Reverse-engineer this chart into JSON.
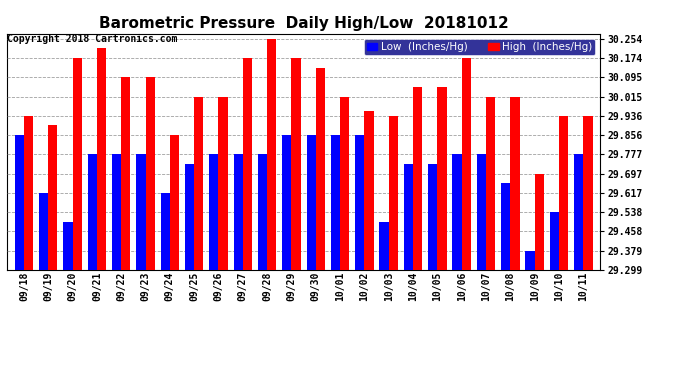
{
  "title": "Barometric Pressure  Daily High/Low  20181012",
  "copyright": "Copyright 2018 Cartronics.com",
  "legend_low": "Low  (Inches/Hg)",
  "legend_high": "High  (Inches/Hg)",
  "dates": [
    "09/18",
    "09/19",
    "09/20",
    "09/21",
    "09/22",
    "09/23",
    "09/24",
    "09/25",
    "09/26",
    "09/27",
    "09/28",
    "09/29",
    "09/30",
    "10/01",
    "10/02",
    "10/03",
    "10/04",
    "10/05",
    "10/06",
    "10/07",
    "10/08",
    "10/09",
    "10/10",
    "10/11"
  ],
  "high_values": [
    29.936,
    29.897,
    30.174,
    30.214,
    30.095,
    30.095,
    29.856,
    30.015,
    30.015,
    30.174,
    30.254,
    30.174,
    30.134,
    30.015,
    29.956,
    29.936,
    30.055,
    30.055,
    30.174,
    30.015,
    30.015,
    29.697,
    29.936,
    29.936
  ],
  "low_values": [
    29.856,
    29.617,
    29.498,
    29.777,
    29.777,
    29.777,
    29.617,
    29.737,
    29.777,
    29.777,
    29.777,
    29.856,
    29.857,
    29.856,
    29.856,
    29.498,
    29.737,
    29.737,
    29.777,
    29.777,
    29.657,
    29.379,
    29.538,
    29.777
  ],
  "ylim_min": 29.299,
  "ylim_max": 30.274,
  "yticks": [
    29.299,
    29.379,
    29.458,
    29.538,
    29.617,
    29.697,
    29.777,
    29.856,
    29.936,
    30.015,
    30.095,
    30.174,
    30.254
  ],
  "bar_width": 0.38,
  "low_color": "#0000ff",
  "high_color": "#ff0000",
  "background_color": "#ffffff",
  "grid_color": "#888888",
  "title_fontsize": 11,
  "tick_fontsize": 7,
  "legend_fontsize": 7.5,
  "copyright_fontsize": 7
}
